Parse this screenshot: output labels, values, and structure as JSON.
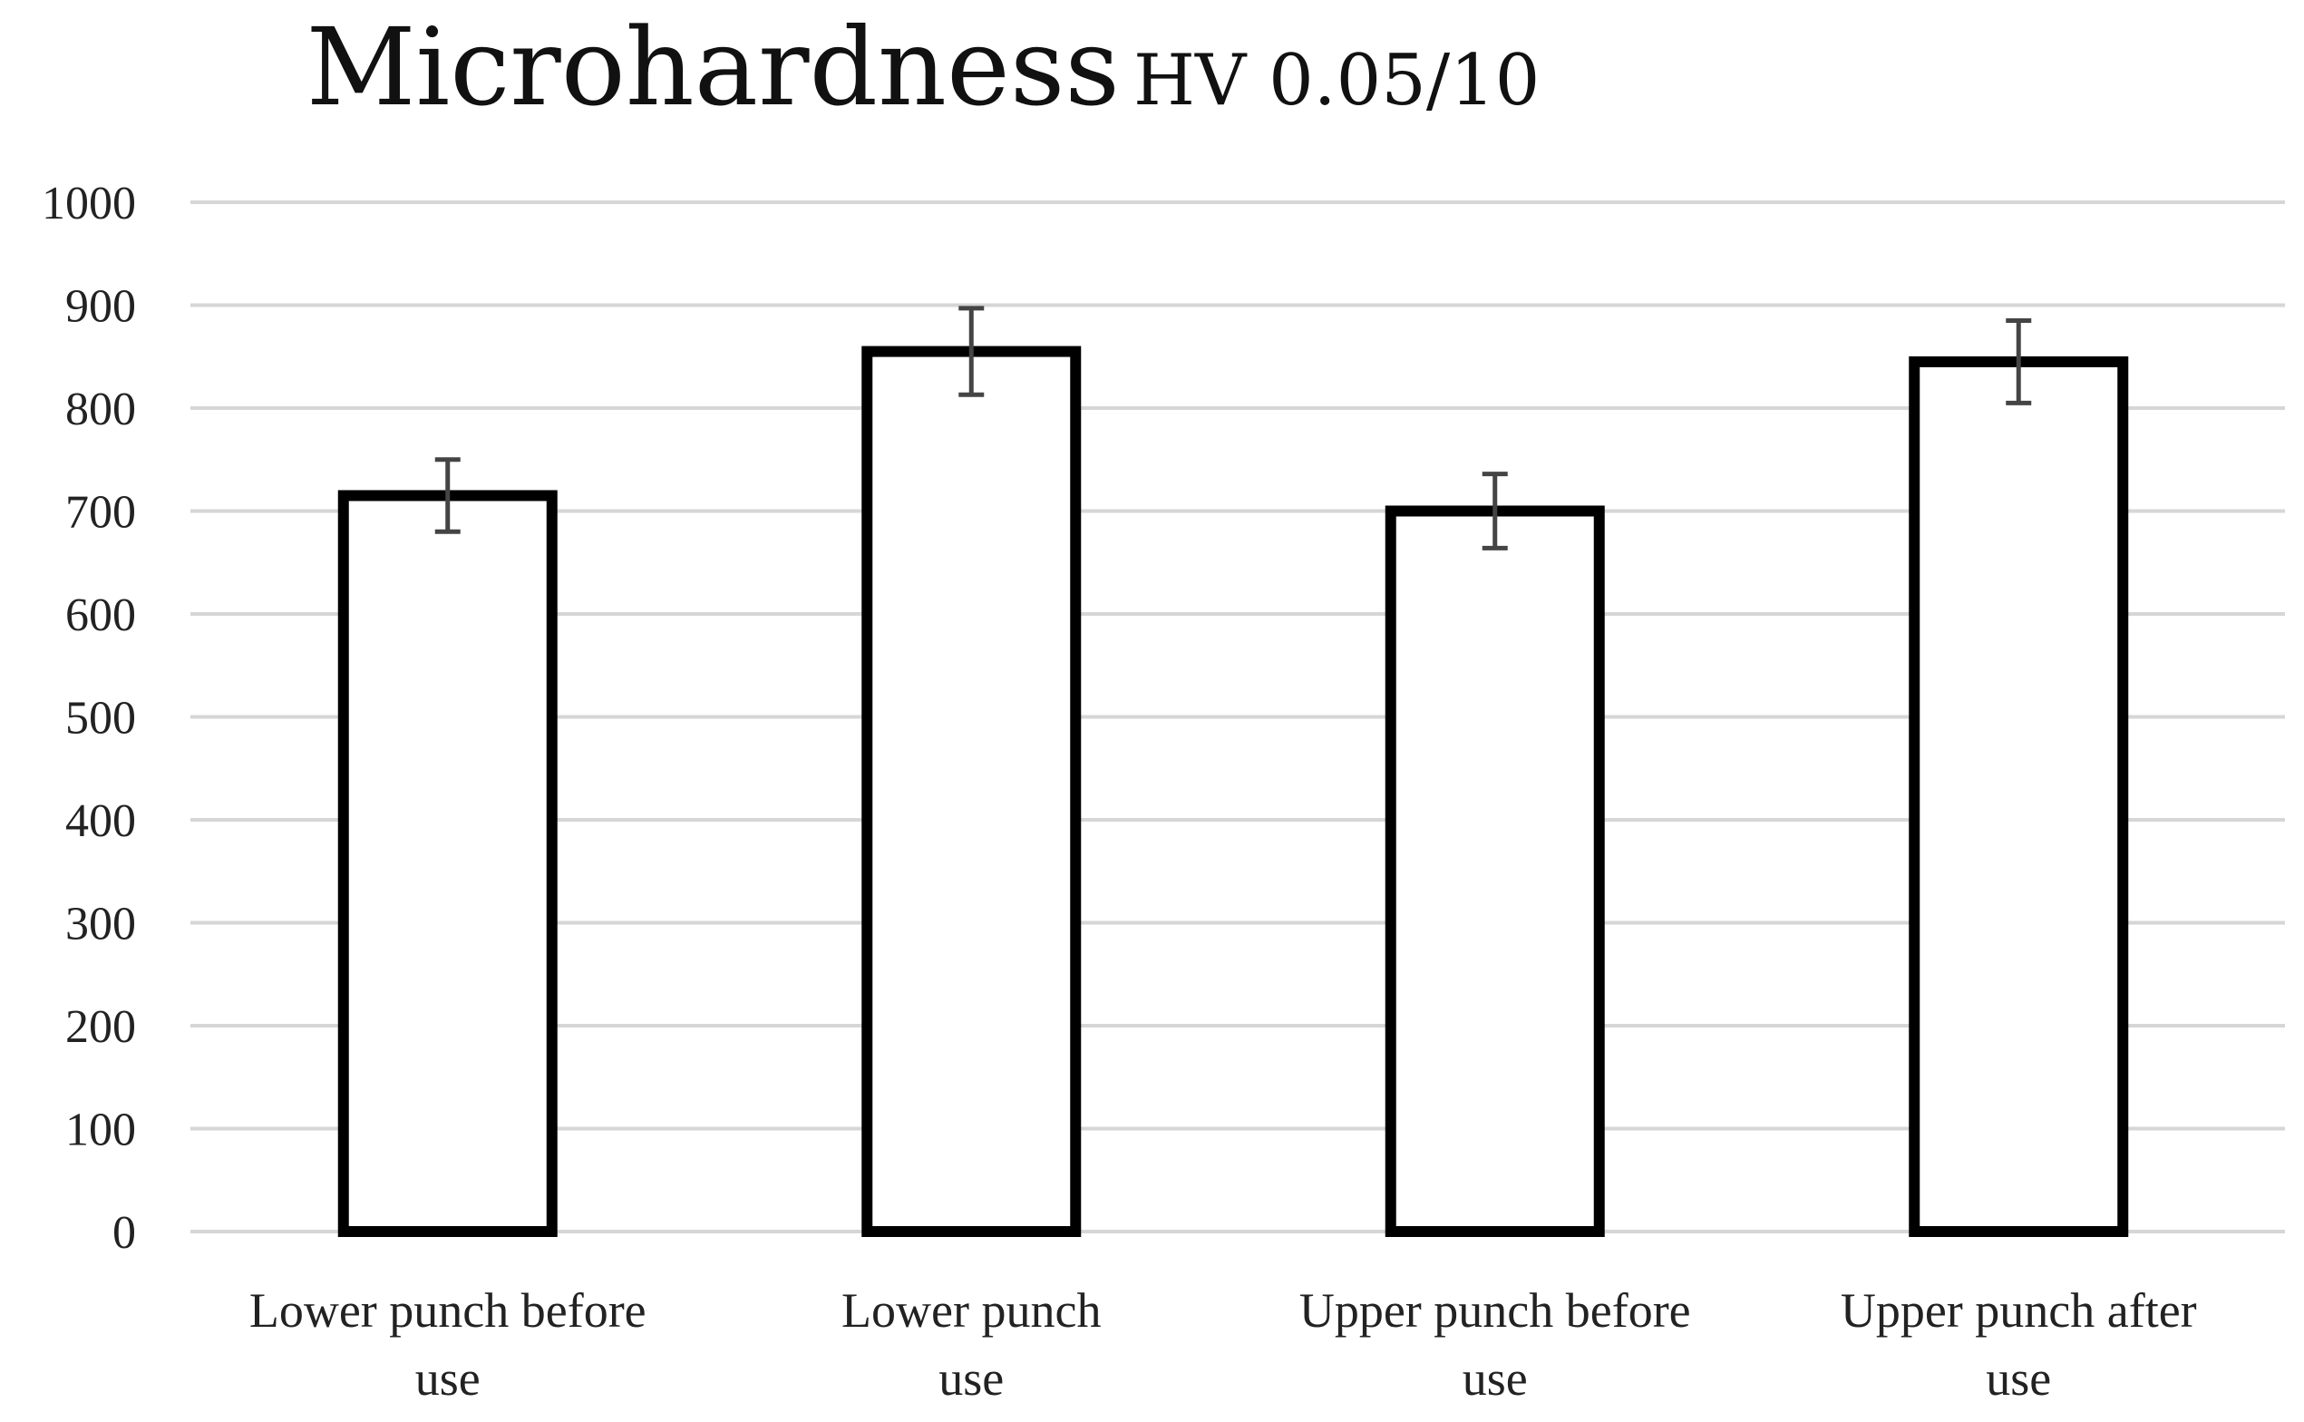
{
  "chart_data": {
    "type": "bar",
    "title": "Microhardness",
    "title_suffix": "HV 0.05/10",
    "xlabel": "",
    "ylabel": "",
    "categories": [
      [
        "Lower punch before",
        "use"
      ],
      [
        "Lower punch",
        "use"
      ],
      [
        "Upper punch before",
        "use"
      ],
      [
        "Upper punch after",
        "use"
      ]
    ],
    "values": [
      715,
      855,
      700,
      845
    ],
    "error": [
      35,
      42,
      36,
      40
    ],
    "ylim": [
      0,
      1000
    ],
    "yticks": [
      0,
      100,
      200,
      300,
      400,
      500,
      600,
      700,
      800,
      900,
      1000
    ],
    "grid": true,
    "bar_fill": "#ffffff",
    "bar_stroke": "#000000",
    "grid_color": "#d6d6d6"
  }
}
